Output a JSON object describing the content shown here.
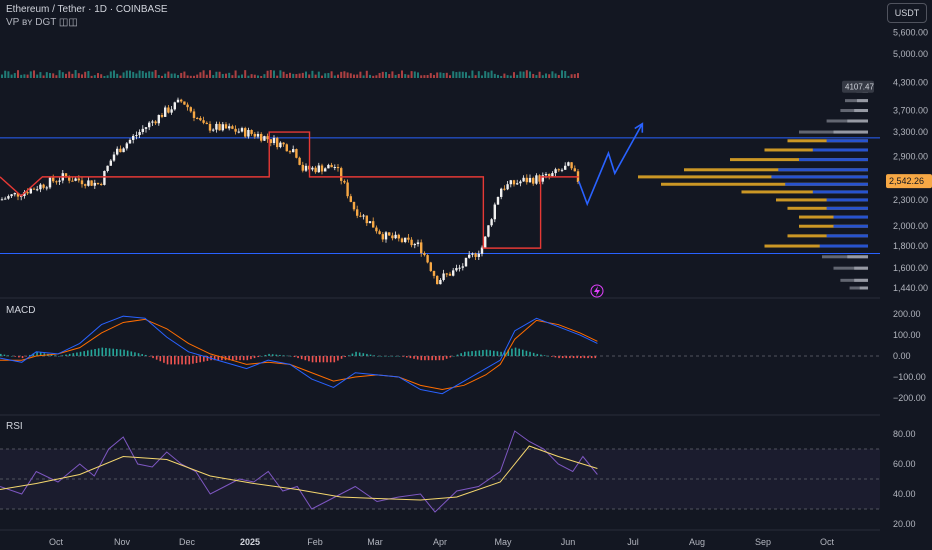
{
  "header": {
    "title": "Ethereum / Tether · 1D · COINBASE",
    "indicator": "VP ʙʏ DGT ◫◫"
  },
  "currency_button": "USDT",
  "panes": {
    "macd_label": "MACD",
    "rsi_label": "RSI"
  },
  "colors": {
    "background": "#131722",
    "candle_up": "#f0f0f0",
    "candle_down": "#f7a845",
    "step_line": "#e53935",
    "blue_line": "#2962ff",
    "projection": "#2962ff",
    "vp_up": "#e0a526",
    "vp_down": "#1e4fd8",
    "vp_gray": "#6b6f7a",
    "macd_line": "#2962ff",
    "signal_line": "#ff6d00",
    "hist_up": "#26a69a",
    "hist_down": "#ef5350",
    "rsi_line": "#7e57c2",
    "rsi_ma": "#f5d76e"
  },
  "chart_data": [
    {
      "type": "candlestick",
      "title": "Ethereum / Tether · 1D · COINBASE",
      "x_labels": [
        "Oct",
        "Nov",
        "Dec",
        "2025",
        "Feb",
        "Mar",
        "Apr",
        "May",
        "Jun",
        "Jul",
        "Aug",
        "Sep",
        "Oct"
      ],
      "y_ticks": [
        5600,
        5000,
        4300,
        3700,
        3300,
        2900,
        2300,
        2000,
        1800,
        1600,
        1440
      ],
      "y_tick_labels": [
        "5,600.00",
        "5,000.00",
        "4,300.00",
        "3,700.00",
        "3,300.00",
        "2,900.00",
        "2,300.00",
        "2,000.00",
        "1,800.00",
        "1,600.00",
        "1,440.00"
      ],
      "scale": "log",
      "current_price": 2542.26,
      "current_price_label": "2,542.26",
      "high_marker_label": "4107.47",
      "horizontal_lines": [
        3200,
        1730
      ],
      "close_path": [
        {
          "date": "2024-09-15",
          "price": 2300
        },
        {
          "date": "2024-10-01",
          "price": 2450
        },
        {
          "date": "2024-10-15",
          "price": 2600
        },
        {
          "date": "2024-11-01",
          "price": 2500
        },
        {
          "date": "2024-11-08",
          "price": 2950
        },
        {
          "date": "2024-11-15",
          "price": 3150
        },
        {
          "date": "2024-12-01",
          "price": 3650
        },
        {
          "date": "2024-12-10",
          "price": 3900
        },
        {
          "date": "2024-12-20",
          "price": 3400
        },
        {
          "date": "2025-01-01",
          "price": 3350
        },
        {
          "date": "2025-01-15",
          "price": 3250
        },
        {
          "date": "2025-02-01",
          "price": 3000
        },
        {
          "date": "2025-02-05",
          "price": 2700
        },
        {
          "date": "2025-02-20",
          "price": 2750
        },
        {
          "date": "2025-03-01",
          "price": 2200
        },
        {
          "date": "2025-03-15",
          "price": 1900
        },
        {
          "date": "2025-04-01",
          "price": 1800
        },
        {
          "date": "2025-04-09",
          "price": 1500
        },
        {
          "date": "2025-04-20",
          "price": 1600
        },
        {
          "date": "2025-05-01",
          "price": 1800
        },
        {
          "date": "2025-05-09",
          "price": 2450
        },
        {
          "date": "2025-05-20",
          "price": 2550
        },
        {
          "date": "2025-06-01",
          "price": 2600
        },
        {
          "date": "2025-06-10",
          "price": 2750
        },
        {
          "date": "2025-06-15",
          "price": 2542
        }
      ],
      "step_line": [
        {
          "date": "2024-09-15",
          "price": 2600
        },
        {
          "date": "2024-09-25",
          "price": 2350
        },
        {
          "date": "2024-10-05",
          "price": 2600
        },
        {
          "date": "2025-01-20",
          "price": 2600
        },
        {
          "date": "2025-01-20",
          "price": 3300
        },
        {
          "date": "2025-02-08",
          "price": 3300
        },
        {
          "date": "2025-02-08",
          "price": 2600
        },
        {
          "date": "2025-05-01",
          "price": 2600
        },
        {
          "date": "2025-05-01",
          "price": 1780
        },
        {
          "date": "2025-05-28",
          "price": 1780
        },
        {
          "date": "2025-05-28",
          "price": 2600
        },
        {
          "date": "2025-06-15",
          "price": 2600
        }
      ],
      "projection": [
        {
          "date": "2025-06-15",
          "price": 2540
        },
        {
          "date": "2025-06-19",
          "price": 2250
        },
        {
          "date": "2025-06-29",
          "price": 2950
        },
        {
          "date": "2025-07-02",
          "price": 2650
        },
        {
          "date": "2025-07-15",
          "price": 3450
        }
      ]
    },
    {
      "type": "bar",
      "title": "Volume Profile",
      "price_bins": [
        4100,
        3900,
        3700,
        3500,
        3300,
        3150,
        3000,
        2850,
        2700,
        2600,
        2500,
        2400,
        2300,
        2200,
        2100,
        2000,
        1900,
        1800,
        1700,
        1600,
        1500,
        1440
      ],
      "up_volume": [
        0.05,
        0.1,
        0.12,
        0.18,
        0.3,
        0.35,
        0.45,
        0.6,
        0.8,
        1.0,
        0.9,
        0.55,
        0.4,
        0.35,
        0.3,
        0.3,
        0.35,
        0.45,
        0.2,
        0.15,
        0.12,
        0.08
      ],
      "down_volume": [
        0.04,
        0.08,
        0.1,
        0.15,
        0.25,
        0.3,
        0.4,
        0.5,
        0.65,
        0.7,
        0.6,
        0.4,
        0.3,
        0.3,
        0.25,
        0.25,
        0.3,
        0.35,
        0.15,
        0.1,
        0.1,
        0.06
      ]
    },
    {
      "type": "line",
      "title": "MACD",
      "y_ticks": [
        200,
        100,
        0,
        -100,
        -200
      ],
      "y_tick_labels": [
        "200.00",
        "100.00",
        "0.00",
        "−100.00",
        "−200.00"
      ],
      "series": [
        {
          "points": [
            [
              0,
              -10
            ],
            [
              15,
              -30
            ],
            [
              25,
              20
            ],
            [
              40,
              10
            ],
            [
              55,
              60
            ],
            [
              70,
              150
            ],
            [
              85,
              190
            ],
            [
              100,
              180
            ],
            [
              115,
              90
            ],
            [
              130,
              20
            ],
            [
              145,
              -10
            ],
            [
              160,
              -40
            ],
            [
              170,
              -60
            ],
            [
              185,
              -20
            ],
            [
              200,
              -40
            ],
            [
              215,
              -110
            ],
            [
              230,
              -150
            ],
            [
              245,
              -80
            ],
            [
              260,
              -90
            ],
            [
              275,
              -100
            ],
            [
              290,
              -160
            ],
            [
              305,
              -180
            ],
            [
              320,
              -120
            ],
            [
              335,
              -60
            ],
            [
              345,
              -20
            ],
            [
              355,
              120
            ],
            [
              370,
              180
            ],
            [
              385,
              140
            ],
            [
              400,
              100
            ],
            [
              412,
              60
            ]
          ]
        },
        {
          "points": [
            [
              0,
              -20
            ],
            [
              15,
              -20
            ],
            [
              25,
              0
            ],
            [
              40,
              10
            ],
            [
              55,
              40
            ],
            [
              70,
              110
            ],
            [
              85,
              160
            ],
            [
              100,
              175
            ],
            [
              115,
              130
            ],
            [
              130,
              60
            ],
            [
              145,
              10
            ],
            [
              160,
              -20
            ],
            [
              170,
              -40
            ],
            [
              185,
              -30
            ],
            [
              200,
              -40
            ],
            [
              215,
              -80
            ],
            [
              230,
              -120
            ],
            [
              245,
              -100
            ],
            [
              260,
              -90
            ],
            [
              275,
              -100
            ],
            [
              290,
              -140
            ],
            [
              305,
              -160
            ],
            [
              320,
              -140
            ],
            [
              335,
              -90
            ],
            [
              345,
              -40
            ],
            [
              355,
              80
            ],
            [
              370,
              170
            ],
            [
              385,
              150
            ],
            [
              400,
              110
            ],
            [
              412,
              70
            ]
          ]
        },
        {
          "points": [
            [
              0,
              10
            ],
            [
              15,
              -10
            ],
            [
              25,
              20
            ],
            [
              40,
              0
            ],
            [
              55,
              20
            ],
            [
              70,
              40
            ],
            [
              85,
              30
            ],
            [
              100,
              5
            ],
            [
              115,
              -40
            ],
            [
              130,
              -40
            ],
            [
              145,
              -20
            ],
            [
              160,
              -20
            ],
            [
              170,
              -20
            ],
            [
              185,
              10
            ],
            [
              200,
              0
            ],
            [
              215,
              -30
            ],
            [
              230,
              -30
            ],
            [
              245,
              20
            ],
            [
              260,
              0
            ],
            [
              275,
              0
            ],
            [
              290,
              -20
            ],
            [
              305,
              -20
            ],
            [
              320,
              20
            ],
            [
              335,
              30
            ],
            [
              345,
              20
            ],
            [
              355,
              40
            ],
            [
              370,
              10
            ],
            [
              385,
              -10
            ],
            [
              400,
              -10
            ],
            [
              412,
              -10
            ]
          ]
        }
      ]
    },
    {
      "type": "line",
      "title": "RSI",
      "y_ticks": [
        80,
        60,
        40,
        20
      ],
      "y_tick_labels": [
        "80.00",
        "60.00",
        "40.00",
        "20.00"
      ],
      "bands": [
        70,
        50,
        30
      ],
      "series": [
        {
          "points": [
            [
              0,
              45
            ],
            [
              15,
              40
            ],
            [
              25,
              55
            ],
            [
              40,
              48
            ],
            [
              55,
              60
            ],
            [
              65,
              52
            ],
            [
              75,
              70
            ],
            [
              85,
              78
            ],
            [
              95,
              60
            ],
            [
              105,
              58
            ],
            [
              115,
              68
            ],
            [
              125,
              60
            ],
            [
              135,
              55
            ],
            [
              145,
              40
            ],
            [
              155,
              45
            ],
            [
              165,
              50
            ],
            [
              175,
              48
            ],
            [
              185,
              55
            ],
            [
              195,
              42
            ],
            [
              205,
              45
            ],
            [
              215,
              30
            ],
            [
              225,
              35
            ],
            [
              235,
              40
            ],
            [
              245,
              45
            ],
            [
              260,
              35
            ],
            [
              275,
              38
            ],
            [
              290,
              40
            ],
            [
              300,
              28
            ],
            [
              315,
              42
            ],
            [
              330,
              45
            ],
            [
              345,
              55
            ],
            [
              355,
              82
            ],
            [
              365,
              75
            ],
            [
              375,
              70
            ],
            [
              385,
              60
            ],
            [
              395,
              55
            ],
            [
              402,
              65
            ],
            [
              412,
              53
            ]
          ]
        },
        {
          "points": [
            [
              0,
              43
            ],
            [
              25,
              47
            ],
            [
              55,
              53
            ],
            [
              85,
              65
            ],
            [
              115,
              63
            ],
            [
              145,
              52
            ],
            [
              175,
              47
            ],
            [
              205,
              43
            ],
            [
              235,
              38
            ],
            [
              260,
              37
            ],
            [
              290,
              36
            ],
            [
              315,
              38
            ],
            [
              345,
              48
            ],
            [
              365,
              72
            ],
            [
              385,
              65
            ],
            [
              412,
              57
            ]
          ]
        }
      ]
    }
  ]
}
